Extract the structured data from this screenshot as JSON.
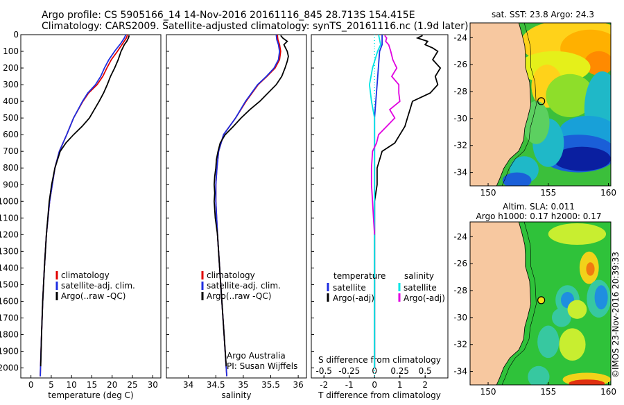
{
  "header": {
    "line1": "Argo profile: CS 5905166_14 14-Nov-2016 20161116_845 28.713S 154.415E",
    "line2": "Climatology: CARS2009. Satellite-adjusted climatology: synTS_20161116.nc (1.9d later)"
  },
  "colors": {
    "climatology": "#e00000",
    "satellite": "#1e2ee0",
    "argo": "#000000",
    "sal_satellite": "#00e5e5",
    "sal_argo": "#e000e0",
    "land": "#f7c8a0"
  },
  "charts": [
    {
      "name": "temperature-profile",
      "type": "line",
      "xlabel": "temperature (deg C)",
      "ylabel": "",
      "xlim": [
        -2.5,
        32
      ],
      "ylim": [
        0,
        2060
      ],
      "y_inverted": true,
      "xticks": [
        "0",
        "5",
        "10",
        "15",
        "20",
        "25",
        "30"
      ],
      "xtick_values": [
        0,
        5,
        10,
        15,
        20,
        25,
        30
      ],
      "yticks": [
        "0",
        "100",
        "200",
        "300",
        "400",
        "500",
        "600",
        "700",
        "800",
        "900",
        "1000",
        "1100",
        "1200",
        "1300",
        "1400",
        "1500",
        "1600",
        "1700",
        "1800",
        "1900",
        "2000"
      ],
      "ytick_values": [
        0,
        100,
        200,
        300,
        400,
        500,
        600,
        700,
        800,
        900,
        1000,
        1100,
        1200,
        1300,
        1400,
        1500,
        1600,
        1700,
        1800,
        1900,
        2000
      ],
      "legend": {
        "items": [
          "climatology",
          "satellite-adj. clim.",
          "Argo(..raw -QC)"
        ]
      },
      "series": [
        {
          "name": "climatology",
          "color": "#e00000",
          "depth": [
            0,
            20,
            50,
            100,
            150,
            200,
            250,
            300,
            350,
            400,
            500,
            600,
            700,
            800,
            1000,
            1200,
            1400,
            1600,
            1800,
            2000,
            2050
          ],
          "values": [
            23.8,
            23.5,
            22.7,
            21.3,
            19.8,
            18.7,
            17.7,
            16.3,
            14.2,
            12.8,
            10.5,
            8.8,
            7.0,
            5.9,
            4.6,
            3.8,
            3.3,
            2.9,
            2.6,
            2.35,
            2.3
          ]
        },
        {
          "name": "satellite-adj. clim.",
          "color": "#1e2ee0",
          "depth": [
            0,
            20,
            50,
            100,
            150,
            200,
            250,
            300,
            350,
            400,
            500,
            600,
            700,
            800,
            1000,
            1200,
            1400,
            1600,
            1800,
            2000,
            2050
          ],
          "values": [
            23.4,
            23.0,
            22.2,
            20.6,
            19.2,
            18.1,
            17.2,
            15.9,
            14.0,
            12.7,
            10.5,
            8.8,
            7.0,
            5.9,
            4.6,
            3.8,
            3.3,
            2.9,
            2.6,
            2.35,
            2.3
          ]
        },
        {
          "name": "Argo(..raw -QC)",
          "color": "#000000",
          "depth": [
            5,
            20,
            40,
            60,
            80,
            100,
            150,
            200,
            250,
            300,
            350,
            400,
            450,
            500,
            550,
            600,
            650,
            700,
            800,
            900,
            1000,
            1200,
            1400,
            1600,
            1800,
            1990
          ],
          "values": [
            24.2,
            24.0,
            23.6,
            23.0,
            22.6,
            22.2,
            21.5,
            20.6,
            19.6,
            18.8,
            17.9,
            16.8,
            15.6,
            14.4,
            12.6,
            10.5,
            8.6,
            7.2,
            5.9,
            5.1,
            4.5,
            3.8,
            3.3,
            2.9,
            2.6,
            2.4
          ]
        }
      ]
    },
    {
      "name": "salinity-profile",
      "type": "line",
      "xlabel": "salinity",
      "ylabel": "",
      "xlim": [
        33.6,
        36.15
      ],
      "ylim": [
        0,
        2060
      ],
      "y_inverted": true,
      "xticks": [
        "34",
        "34.5",
        "35",
        "35.5",
        "36"
      ],
      "xtick_values": [
        34,
        34.5,
        35,
        35.5,
        36
      ],
      "legend": {
        "items": [
          "climatology",
          "satellite-adj. clim.",
          "Argo(..raw -QC)"
        ]
      },
      "annotation": [
        "Argo Australia",
        "PI: Susan Wijffels"
      ],
      "series": [
        {
          "name": "climatology",
          "color": "#e00000",
          "depth": [
            0,
            30,
            60,
            100,
            150,
            200,
            250,
            300,
            400,
            500,
            600,
            700,
            800,
            900,
            1000,
            1200,
            1400,
            1600,
            1800,
            2000,
            2050
          ],
          "values": [
            35.62,
            35.63,
            35.66,
            35.68,
            35.66,
            35.58,
            35.43,
            35.27,
            35.05,
            34.86,
            34.64,
            34.55,
            34.52,
            34.5,
            34.5,
            34.53,
            34.57,
            34.61,
            34.65,
            34.69,
            34.7
          ]
        },
        {
          "name": "satellite-adj. clim.",
          "color": "#1e2ee0",
          "depth": [
            0,
            30,
            60,
            100,
            150,
            200,
            250,
            300,
            400,
            500,
            600,
            700,
            800,
            900,
            1000,
            1200,
            1400,
            1600,
            1800,
            2000,
            2050
          ],
          "values": [
            35.6,
            35.61,
            35.64,
            35.66,
            35.64,
            35.56,
            35.42,
            35.26,
            35.04,
            34.86,
            34.64,
            34.55,
            34.52,
            34.5,
            34.5,
            34.53,
            34.57,
            34.61,
            34.65,
            34.69,
            34.7
          ]
        },
        {
          "name": "Argo(..raw -QC)",
          "color": "#000000",
          "depth": [
            5,
            20,
            40,
            60,
            80,
            100,
            130,
            160,
            200,
            250,
            300,
            350,
            400,
            450,
            500,
            550,
            600,
            650,
            700,
            750,
            800,
            850,
            900,
            950,
            1000,
            1050,
            1100,
            1200,
            1400,
            1600,
            1800,
            1990
          ],
          "values": [
            35.68,
            35.72,
            35.8,
            35.74,
            35.77,
            35.8,
            35.82,
            35.8,
            35.76,
            35.7,
            35.6,
            35.45,
            35.3,
            35.12,
            34.96,
            34.82,
            34.67,
            34.58,
            34.54,
            34.51,
            34.5,
            34.48,
            34.47,
            34.48,
            34.47,
            34.48,
            34.49,
            34.53,
            34.57,
            34.61,
            34.65,
            34.69
          ]
        }
      ]
    },
    {
      "name": "difference-profile",
      "type": "line",
      "xlabel": "T difference from climatology",
      "xlabel_top": "S difference from climatology",
      "xlim": [
        -2.5,
        2.9
      ],
      "ylim": [
        0,
        2060
      ],
      "y_inverted": true,
      "xticks": [
        "-2",
        "-1",
        "0",
        "1",
        "2"
      ],
      "xtick_values": [
        -2,
        -1,
        0,
        1,
        2
      ],
      "sticks": [
        "-0.5",
        "-0.25",
        "0",
        "0.25",
        "0.5"
      ],
      "stick_values": [
        -0.5,
        -0.25,
        0,
        0.25,
        0.5
      ],
      "legend": {
        "temp_title": "temperature",
        "temp_items": [
          "satellite",
          "Argo(-adj)"
        ],
        "sal_title": "salinity",
        "sal_items": [
          "satellite",
          "Argo(-adj)"
        ]
      },
      "series": [
        {
          "name": "temperature satellite",
          "color": "#1e2ee0",
          "depth": [
            0,
            30,
            60,
            100,
            200,
            300,
            400,
            500,
            600,
            700,
            1000,
            1500,
            2000
          ],
          "values": [
            0.3,
            0.3,
            0.3,
            0.2,
            0.15,
            0.1,
            0.05,
            0.0,
            0.0,
            0.0,
            0.0,
            0.0,
            0.0
          ]
        },
        {
          "name": "temperature Argo(-adj)",
          "color": "#000000",
          "depth": [
            5,
            20,
            40,
            60,
            80,
            100,
            150,
            200,
            250,
            300,
            350,
            400,
            450,
            500,
            550,
            600,
            650,
            700,
            800,
            900,
            1000,
            1300,
            1600,
            2000
          ],
          "values": [
            1.9,
            1.7,
            2.1,
            2.0,
            2.3,
            2.5,
            2.3,
            2.6,
            2.4,
            2.5,
            2.2,
            1.5,
            1.4,
            1.3,
            1.2,
            1.0,
            0.8,
            0.3,
            0.1,
            0.1,
            0.0,
            0.0,
            0.0,
            0.0
          ]
        },
        {
          "name": "salinity satellite",
          "color": "#00e5e5",
          "depth": [
            0,
            30,
            60,
            100,
            200,
            300,
            400,
            500,
            600,
            700,
            1000,
            1500,
            2000
          ],
          "values": [
            0.04,
            0.05,
            0.06,
            0.03,
            -0.02,
            -0.05,
            -0.03,
            0.0,
            0.0,
            0.0,
            0.0,
            0.0,
            0.0
          ]
        },
        {
          "name": "salinity Argo(-adj)",
          "color": "#e000e0",
          "depth": [
            5,
            20,
            40,
            60,
            80,
            100,
            150,
            200,
            250,
            300,
            350,
            400,
            450,
            500,
            550,
            600,
            650,
            700,
            800,
            900,
            1000,
            1100,
            1200
          ],
          "values": [
            0.1,
            0.12,
            0.11,
            0.14,
            0.15,
            0.16,
            0.18,
            0.22,
            0.17,
            0.24,
            0.24,
            0.25,
            0.15,
            0.2,
            0.12,
            0.04,
            0.02,
            -0.02,
            -0.03,
            -0.03,
            -0.02,
            -0.01,
            0.0
          ]
        }
      ]
    }
  ],
  "maps": [
    {
      "name": "sst-map",
      "title": "sat. SST: 23.8  Argo: 24.3",
      "xticks": [
        "150",
        "155",
        "160"
      ],
      "xtick_values": [
        150,
        155,
        160
      ],
      "yticks": [
        "-24",
        "-26",
        "-28",
        "-30",
        "-32",
        "-34"
      ],
      "ytick_values": [
        -24,
        -26,
        -28,
        -30,
        -32,
        -34
      ],
      "xlim": [
        148.5,
        160.2
      ],
      "ylim": [
        -35,
        -22.9
      ],
      "marker": {
        "lon": 154.415,
        "lat": -28.713
      }
    },
    {
      "name": "sla-map",
      "title_line1": "Altim. SLA: 0.011",
      "title_line2": "Argo h1000: 0.17  h2000: 0.17",
      "xticks": [
        "150",
        "155",
        "160"
      ],
      "xtick_values": [
        150,
        155,
        160
      ],
      "yticks": [
        "-24",
        "-26",
        "-28",
        "-30",
        "-32",
        "-34"
      ],
      "ytick_values": [
        -24,
        -26,
        -28,
        -30,
        -32,
        -34
      ],
      "xlim": [
        148.5,
        160.2
      ],
      "ylim": [
        -35,
        -22.9
      ],
      "marker": {
        "lon": 154.415,
        "lat": -28.713
      }
    }
  ],
  "footer_vertical": "©IMOS 23-Nov-2016 20:39:33"
}
